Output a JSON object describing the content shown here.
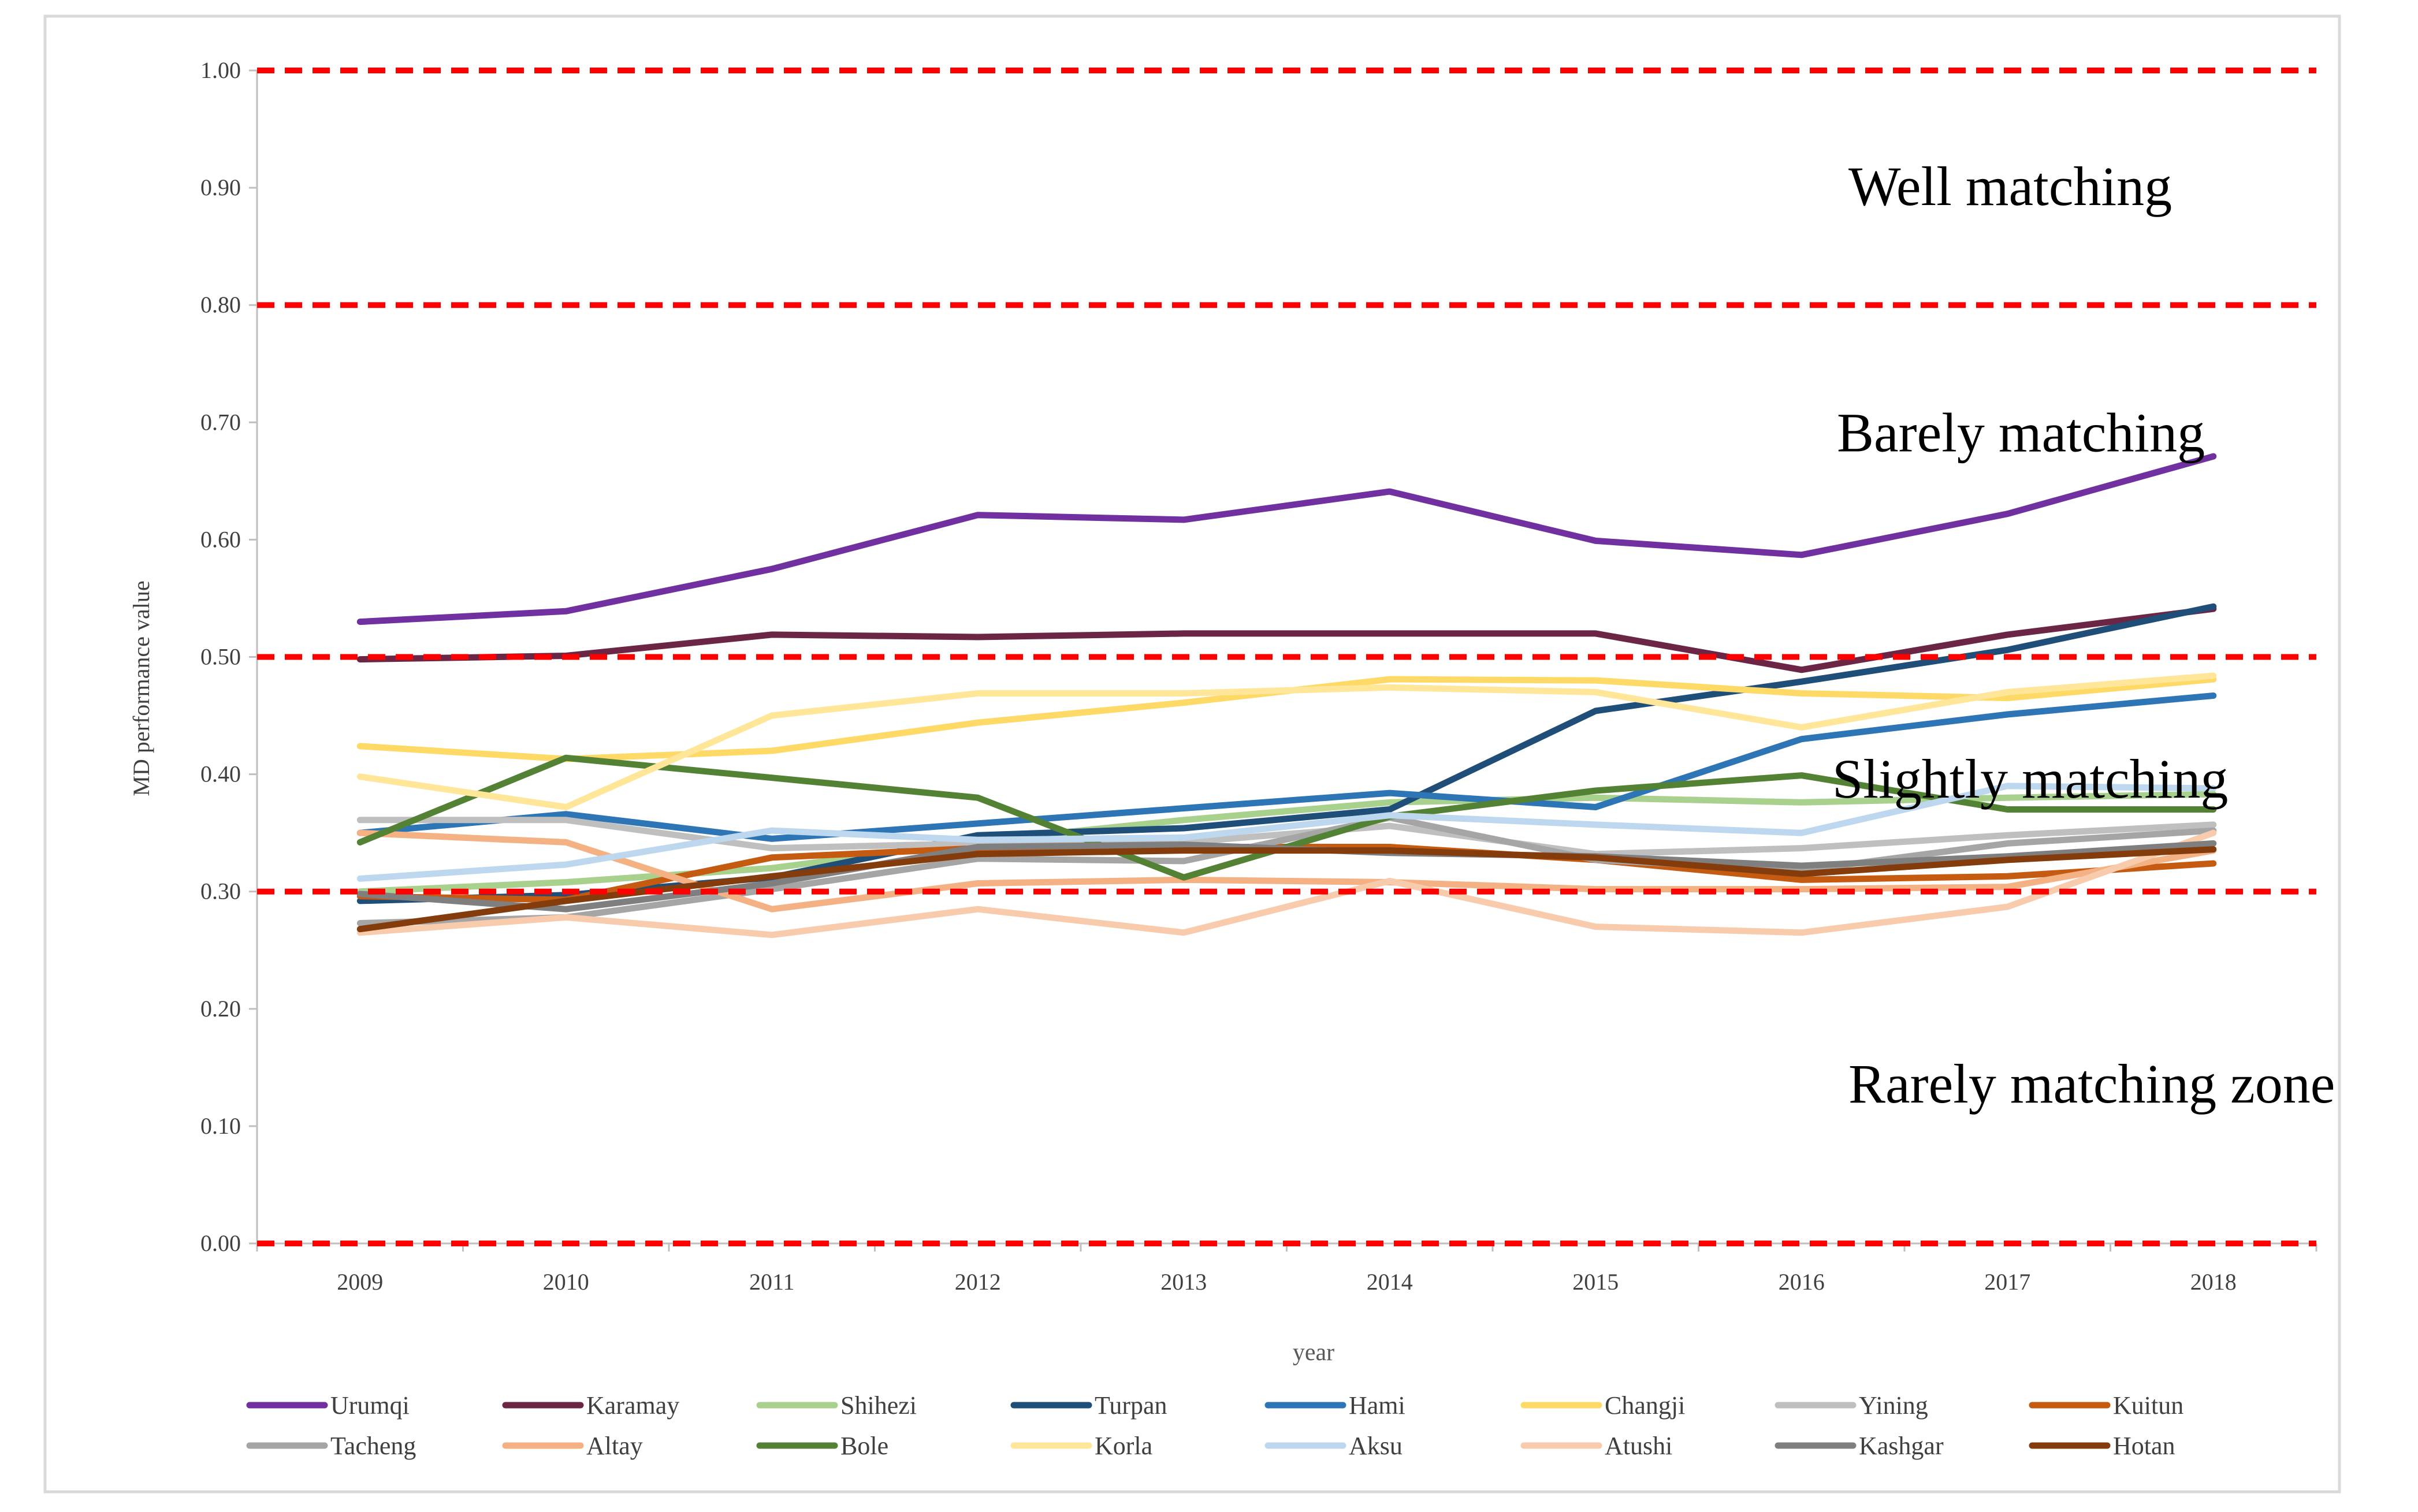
{
  "chart_data": {
    "type": "line",
    "title": "",
    "xlabel": "year",
    "ylabel": "MD performance value",
    "ylim": [
      0,
      1
    ],
    "yticks": [
      "0.00",
      "0.10",
      "0.20",
      "0.30",
      "0.40",
      "0.50",
      "0.60",
      "0.70",
      "0.80",
      "0.90",
      "1.00"
    ],
    "ytick_values": [
      0,
      0.1,
      0.2,
      0.3,
      0.4,
      0.5,
      0.6,
      0.7,
      0.8,
      0.9,
      1.0
    ],
    "categories": [
      "2009",
      "2010",
      "2011",
      "2012",
      "2013",
      "2014",
      "2015",
      "2016",
      "2017",
      "2018"
    ],
    "thresholds": [
      0.0,
      0.3,
      0.5,
      0.8,
      1.0
    ],
    "zones": [
      {
        "label": "Well matching",
        "y": 0.9
      },
      {
        "label": "Barely matching",
        "y": 0.69
      },
      {
        "label": "Slightly matching",
        "y": 0.395
      },
      {
        "label": "Rarely matching zone",
        "y": 0.135
      }
    ],
    "threshold_color": "#ff0000",
    "series": [
      {
        "name": "Urumqi",
        "color": "#7030a0",
        "values": [
          0.53,
          0.539,
          0.575,
          0.621,
          0.617,
          0.641,
          0.599,
          0.587,
          0.622,
          0.671
        ]
      },
      {
        "name": "Karamay",
        "color": "#6b2646",
        "values": [
          0.498,
          0.501,
          0.519,
          0.517,
          0.52,
          0.52,
          0.52,
          0.489,
          0.519,
          0.541
        ]
      },
      {
        "name": "Shihezi",
        "color": "#a9d18e",
        "values": [
          0.3,
          0.308,
          0.32,
          0.343,
          0.361,
          0.376,
          0.38,
          0.376,
          0.38,
          0.383
        ]
      },
      {
        "name": "Turpan",
        "color": "#1f4e79",
        "values": [
          0.292,
          0.297,
          0.312,
          0.348,
          0.354,
          0.37,
          0.454,
          0.479,
          0.506,
          0.543
        ]
      },
      {
        "name": "Hami",
        "color": "#2e75b6",
        "values": [
          0.35,
          0.366,
          0.345,
          0.358,
          0.371,
          0.384,
          0.372,
          0.43,
          0.451,
          0.467
        ]
      },
      {
        "name": "Changji",
        "color": "#ffd966",
        "values": [
          0.424,
          0.413,
          0.42,
          0.444,
          0.461,
          0.481,
          0.48,
          0.469,
          0.465,
          0.481
        ]
      },
      {
        "name": "Yining",
        "color": "#bfbfbf",
        "values": [
          0.361,
          0.361,
          0.337,
          0.341,
          0.342,
          0.356,
          0.332,
          0.337,
          0.348,
          0.357
        ]
      },
      {
        "name": "Kuitun",
        "color": "#c55a11",
        "values": [
          0.296,
          0.293,
          0.329,
          0.337,
          0.338,
          0.338,
          0.327,
          0.31,
          0.313,
          0.324
        ]
      },
      {
        "name": "Tacheng",
        "color": "#a5a5a5",
        "values": [
          0.273,
          0.278,
          0.302,
          0.328,
          0.326,
          0.363,
          0.327,
          0.318,
          0.341,
          0.352
        ]
      },
      {
        "name": "Altay",
        "color": "#f4b183",
        "values": [
          0.35,
          0.342,
          0.285,
          0.307,
          0.31,
          0.308,
          0.302,
          0.302,
          0.304,
          0.335
        ]
      },
      {
        "name": "Bole",
        "color": "#548235",
        "values": [
          0.342,
          0.414,
          0.397,
          0.38,
          0.312,
          0.364,
          0.386,
          0.399,
          0.37,
          0.37
        ]
      },
      {
        "name": "Korla",
        "color": "#ffe699",
        "values": [
          0.398,
          0.372,
          0.45,
          0.469,
          0.469,
          0.474,
          0.47,
          0.44,
          0.47,
          0.484
        ]
      },
      {
        "name": "Aksu",
        "color": "#bdd7ee",
        "values": [
          0.311,
          0.323,
          0.352,
          0.344,
          0.346,
          0.365,
          0.357,
          0.35,
          0.39,
          0.388
        ]
      },
      {
        "name": "Atushi",
        "color": "#f8cbad",
        "values": [
          0.265,
          0.278,
          0.263,
          0.285,
          0.265,
          0.309,
          0.27,
          0.265,
          0.287,
          0.35
        ]
      },
      {
        "name": "Kashgar",
        "color": "#7f7f7f",
        "values": [
          0.298,
          0.285,
          0.307,
          0.338,
          0.34,
          0.333,
          0.33,
          0.322,
          0.33,
          0.341
        ]
      },
      {
        "name": "Hotan",
        "color": "#843c0c",
        "values": [
          0.268,
          0.292,
          0.313,
          0.332,
          0.335,
          0.335,
          0.329,
          0.315,
          0.327,
          0.336
        ]
      }
    ]
  }
}
